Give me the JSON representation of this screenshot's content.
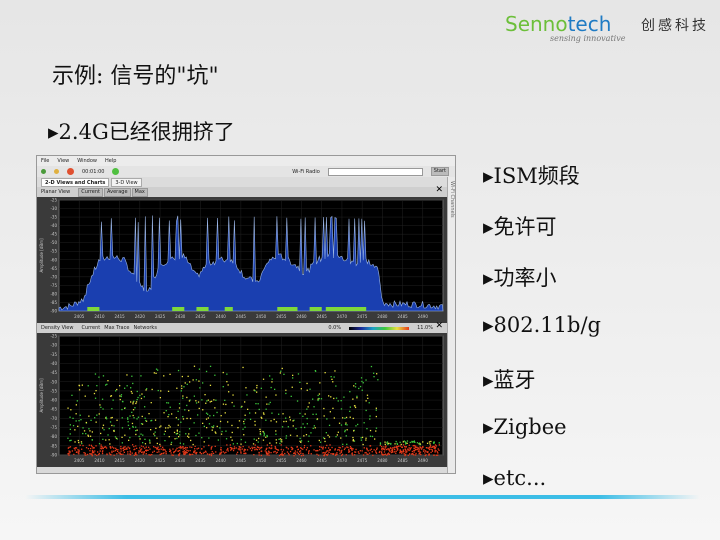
{
  "logo": {
    "brand_a": "Senno",
    "brand_b": "tech",
    "chinese": "创感科技",
    "tagline": "sensing innovative"
  },
  "title": "示例: 信号的\"坑\"",
  "subtitle": "▸2.4G已经很拥挤了",
  "bullets": [
    "▸ISM频段",
    "▸免许可",
    "▸功率小",
    "▸802.11b/g",
    "▸蓝牙",
    "▸Zigbee",
    "▸etc..."
  ],
  "screenshot": {
    "menu": [
      "File",
      "View",
      "Window",
      "Help"
    ],
    "timer": "00:01:00",
    "radio_label": "Wi-Fi Radio",
    "start_label": "Start",
    "tabs": [
      {
        "label": "2-D Views and Charts",
        "active": true
      },
      {
        "label": "3-D View",
        "active": false
      }
    ],
    "planar": {
      "view_label": "Planar View",
      "buttons": [
        "Current",
        "Average",
        "Max"
      ]
    },
    "density": {
      "view_label": "Density View",
      "buttons": [
        "Current",
        "Max Trace",
        "Networks"
      ],
      "scale_min": "0.0%",
      "scale_max": "11.0%"
    },
    "side_label": "Wi-Fi Channels",
    "colors": {
      "spectrum_fill": "#1a3fb0",
      "trace": "#9bb6e6",
      "bluetooth": "#7fd83a"
    },
    "chart_data": [
      {
        "type": "area",
        "ylabel": "Amplitude [dBm]",
        "ylim": [
          -90,
          -25
        ],
        "yticks": [
          -25,
          -30,
          -35,
          -40,
          -45,
          -50,
          -55,
          -60,
          -65,
          -70,
          -75,
          -80,
          -85,
          -90
        ],
        "xticks": [
          2405,
          2410,
          2415,
          2420,
          2425,
          2430,
          2435,
          2440,
          2445,
          2450,
          2455,
          2460,
          2465,
          2470,
          2475,
          2480,
          2485,
          2490
        ],
        "x": [
          2400,
          2403,
          2406,
          2408,
          2410,
          2413,
          2416,
          2419,
          2422,
          2425,
          2428,
          2431,
          2434,
          2437,
          2440,
          2443,
          2446,
          2449,
          2452,
          2455,
          2458,
          2461,
          2464,
          2467,
          2470,
          2473,
          2476,
          2479,
          2480,
          2483,
          2486,
          2489,
          2493
        ],
        "values": [
          -88,
          -87,
          -83,
          -70,
          -60,
          -58,
          -60,
          -72,
          -80,
          -62,
          -60,
          -58,
          -70,
          -62,
          -60,
          -60,
          -70,
          -74,
          -60,
          -58,
          -62,
          -68,
          -60,
          -58,
          -59,
          -62,
          -60,
          -66,
          -85,
          -86,
          -86,
          -86,
          -87
        ]
      },
      {
        "type": "heatmap",
        "ylabel": "Amplitude [dBm]",
        "ylim": [
          -90,
          -25
        ],
        "yticks": [
          -25,
          -30,
          -35,
          -40,
          -45,
          -50,
          -55,
          -60,
          -65,
          -70,
          -75,
          -80,
          -85,
          -90
        ],
        "xticks": [
          2405,
          2410,
          2415,
          2420,
          2425,
          2430,
          2435,
          2440,
          2445,
          2450,
          2455,
          2460,
          2465,
          2470,
          2475,
          2480,
          2485,
          2490
        ],
        "color_scale": [
          "#000000",
          "#1a2a9a",
          "#1ea0c8",
          "#3cc83c",
          "#e8e040",
          "#e83a1a"
        ]
      }
    ]
  }
}
